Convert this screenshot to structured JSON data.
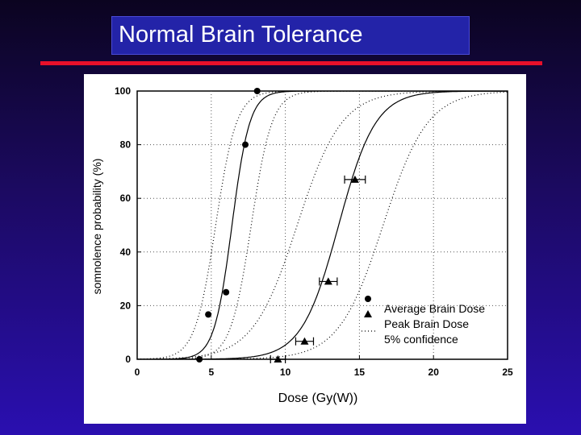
{
  "slide": {
    "title": "Normal Brain Tolerance"
  },
  "chart_data": {
    "type": "scatter",
    "xlabel": "Dose (Gy(W))",
    "ylabel": "somnolence probability (%)",
    "xlim": [
      0,
      25
    ],
    "ylim": [
      0,
      100
    ],
    "xticks": [
      0,
      5,
      10,
      15,
      20,
      25
    ],
    "yticks": [
      0,
      20,
      40,
      60,
      80,
      100
    ],
    "grid": true,
    "legend_position": "bottom-right",
    "series": [
      {
        "name": "Average Brain Dose",
        "marker": "circle",
        "points": [
          {
            "x": 4.2,
            "y": 0
          },
          {
            "x": 4.8,
            "y": 16.7
          },
          {
            "x": 6.0,
            "y": 25
          },
          {
            "x": 7.3,
            "y": 80
          },
          {
            "x": 8.1,
            "y": 100
          }
        ]
      },
      {
        "name": "Peak Brain Dose",
        "marker": "triangle",
        "points": [
          {
            "x": 9.5,
            "y": 0,
            "xerr": 0.5
          },
          {
            "x": 11.3,
            "y": 6.7,
            "xerr": 0.6
          },
          {
            "x": 12.9,
            "y": 29,
            "xerr": 0.6
          },
          {
            "x": 14.7,
            "y": 67,
            "xerr": 0.7
          }
        ]
      },
      {
        "name": "5% confidence",
        "marker": "dotted-line"
      }
    ],
    "fits": [
      {
        "series": "Average Brain Dose",
        "center": 6.4,
        "width": 0.6,
        "lower_center": 5.3,
        "upper_center": 7.7,
        "band_width": 0.7
      },
      {
        "series": "Peak Brain Dose",
        "center": 13.6,
        "width": 1.25,
        "lower_center": 10.8,
        "upper_center": 16.6,
        "band_width": 1.5
      }
    ],
    "colors": {
      "marks": "#000000",
      "grid": "#555555",
      "panel": "#ffffff"
    }
  }
}
